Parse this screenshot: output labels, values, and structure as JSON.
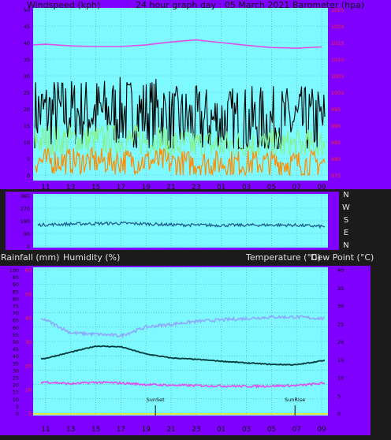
{
  "header": {
    "left": "Windspeed (kph)",
    "center": "24 hour graph day : 05 March 2021",
    "right": "Barometer (hpa)"
  },
  "middle_header": {
    "left1": "Rainfall (mm)",
    "left2": "Humidity (%)",
    "right1": "Temperature (°C)",
    "right2": "Dew Point (°C)"
  },
  "x_ticks": [
    "11",
    "13",
    "15",
    "17",
    "19",
    "21",
    "23",
    "01",
    "03",
    "05",
    "07",
    "09"
  ],
  "directions": [
    "N",
    "W",
    "S",
    "E",
    "N"
  ],
  "sun": {
    "set": "SunSet",
    "rise": "SunRise"
  },
  "colors": {
    "plot_bg": "#7ef9ff",
    "frame": "#8000ff",
    "black_series": "#000000",
    "gust_green": "#86f28a",
    "wind_orange": "#ff8c00",
    "pressure": "#e14ef0",
    "direction": "#1c5f8f",
    "humidity": "#8ea7ff",
    "temperature": "#003b3b",
    "dewpoint": "#e14ef0",
    "rain_scale": "#ff2a2a"
  },
  "chart_data": [
    {
      "type": "line",
      "title": "24 hour graph day : 05 March 2021",
      "ylabel": "Windspeed (kph)",
      "ylabel_right": "Barometer (hpa)",
      "ylim": [
        0,
        50
      ],
      "ylim_right": [
        975,
        1025
      ],
      "y_ticks": [
        0,
        5,
        10,
        15,
        20,
        25,
        30,
        35,
        40,
        45,
        50
      ],
      "y_ticks_right": [
        975,
        980,
        985,
        990,
        995,
        1000,
        1005,
        1010,
        1015,
        1020,
        1025
      ],
      "x_tick_labels": [
        "11",
        "13",
        "15",
        "17",
        "19",
        "21",
        "23",
        "01",
        "03",
        "05",
        "07",
        "09"
      ],
      "series": [
        {
          "name": "Gust (black)",
          "range_kph": [
            8,
            32
          ],
          "typical_kph": 18
        },
        {
          "name": "Average (green)",
          "range_kph": [
            6,
            17
          ],
          "typical_kph": 10
        },
        {
          "name": "Windspeed (orange)",
          "range_kph": [
            0,
            9
          ],
          "typical_kph": 4
        },
        {
          "name": "Barometer",
          "axis": "right",
          "x": [
            "10",
            "11",
            "13",
            "15",
            "17",
            "19",
            "21",
            "23",
            "01",
            "03",
            "05",
            "07",
            "09"
          ],
          "values": [
            1014.3,
            1014.5,
            1014.0,
            1013.8,
            1013.8,
            1014.3,
            1015.2,
            1015.8,
            1015.0,
            1014.2,
            1013.5,
            1013.3,
            1013.7
          ]
        }
      ]
    },
    {
      "type": "line",
      "ylabel_right": [
        "N",
        "W",
        "S",
        "E",
        "N"
      ],
      "y_ticks": [
        360,
        270,
        180,
        90,
        0
      ],
      "x_tick_labels": [
        "11",
        "13",
        "15",
        "17",
        "19",
        "21",
        "23",
        "01",
        "03",
        "05",
        "07",
        "09"
      ],
      "series": [
        {
          "name": "Wind direction",
          "x": [
            "10",
            "11",
            "13",
            "15",
            "17",
            "19",
            "21",
            "23",
            "01",
            "03",
            "05",
            "07",
            "09"
          ],
          "values": [
            150,
            152,
            157,
            160,
            162,
            158,
            152,
            149,
            148,
            149,
            150,
            148,
            140
          ]
        }
      ]
    },
    {
      "type": "line",
      "ylabel": "Humidity (%)",
      "ylabel_right": "Temperature (°C)",
      "ylim": [
        0,
        100
      ],
      "ylim_right": [
        0,
        40
      ],
      "y_ticks": [
        0,
        5,
        10,
        15,
        20,
        25,
        30,
        35,
        40,
        45,
        50,
        55,
        60,
        65,
        70,
        75,
        80,
        85,
        90,
        95,
        100
      ],
      "y_ticks_right": [
        0,
        5,
        10,
        15,
        20,
        25,
        30,
        35,
        40
      ],
      "rain_ticks": [
        0,
        10,
        20,
        30,
        40,
        50,
        60
      ],
      "x_tick_labels": [
        "11",
        "13",
        "15",
        "17",
        "19",
        "21",
        "23",
        "01",
        "03",
        "05",
        "07",
        "09"
      ],
      "series": [
        {
          "name": "Humidity (%)",
          "x": [
            "10",
            "11",
            "13",
            "15",
            "17",
            "19",
            "21",
            "23",
            "01",
            "03",
            "05",
            "07",
            "09"
          ],
          "values": [
            64,
            65,
            56,
            55,
            54,
            60,
            62,
            64,
            65,
            66,
            67,
            67,
            66
          ]
        },
        {
          "name": "Temperature (°C)",
          "axis": "right",
          "x": [
            "10",
            "11",
            "13",
            "15",
            "17",
            "19",
            "21",
            "23",
            "01",
            "03",
            "05",
            "07",
            "09"
          ],
          "values": [
            15.0,
            15.3,
            17.0,
            18.7,
            18.5,
            16.5,
            15.4,
            15.0,
            14.5,
            14.0,
            13.6,
            13.5,
            14.6
          ]
        },
        {
          "name": "Dew Point (°C)",
          "axis": "right",
          "x": [
            "10",
            "11",
            "13",
            "15",
            "17",
            "19",
            "21",
            "23",
            "01",
            "03",
            "05",
            "07",
            "09"
          ],
          "values": [
            8.5,
            8.7,
            8.2,
            8.6,
            8.4,
            8.0,
            7.8,
            7.7,
            7.6,
            7.5,
            7.6,
            7.7,
            8.3
          ]
        },
        {
          "name": "Rainfall (mm)",
          "x": [
            "10",
            "09"
          ],
          "values": [
            0,
            0
          ]
        }
      ]
    }
  ]
}
